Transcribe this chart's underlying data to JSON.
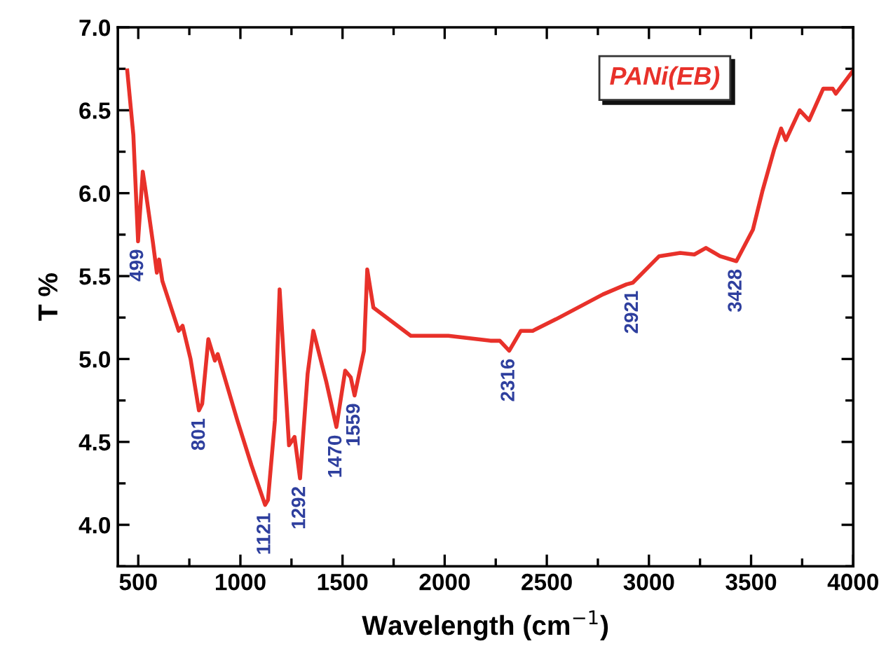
{
  "chart_data": {
    "type": "line",
    "xlabel": "Wavelength (cm$^{−1}$)",
    "ylabel": "T %",
    "xlim": [
      400,
      4000
    ],
    "xticks": [
      500,
      1000,
      1500,
      2000,
      2500,
      3000,
      3500,
      4000
    ],
    "ylim": [
      3.75,
      7.0
    ],
    "yticks": [
      {
        "value": 4,
        "label": "4.0"
      },
      4.5,
      {
        "value": 5,
        "label": "5.0"
      },
      5.5,
      {
        "value": 6,
        "label": "6.0"
      },
      6.5,
      {
        "value": 7,
        "label": "7.0"
      }
    ],
    "grid": false,
    "legend": "top right",
    "marker": "none",
    "line_style": "solid",
    "series": [
      {
        "name": "PANi(EB)",
        "color": "#e8312a",
        "x": [
          446,
          476,
          499,
          522,
          533,
          572,
          591,
          602,
          618,
          698,
          717,
          756,
          797,
          813,
          843,
          875,
          889,
          985,
          1054,
          1121,
          1135,
          1169,
          1192,
          1210,
          1238,
          1265,
          1292,
          1329,
          1357,
          1421,
          1470,
          1513,
          1540,
          1559,
          1605,
          1621,
          1651,
          1834,
          2018,
          2224,
          2270,
          2316,
          2373,
          2431,
          2545,
          2775,
          2890,
          2921,
          3050,
          3153,
          3222,
          3279,
          3348,
          3428,
          3509,
          3555,
          3612,
          3647,
          3670,
          3738,
          3784,
          3853,
          3900,
          3915,
          4000
        ],
        "values": [
          6.74,
          6.35,
          5.71,
          6.13,
          6.04,
          5.7,
          5.52,
          5.6,
          5.47,
          5.17,
          5.2,
          5.0,
          4.69,
          4.73,
          5.12,
          4.99,
          5.03,
          4.63,
          4.36,
          4.12,
          4.15,
          4.63,
          5.42,
          5.05,
          4.48,
          4.53,
          4.28,
          4.91,
          5.17,
          4.86,
          4.59,
          4.93,
          4.89,
          4.78,
          5.05,
          5.54,
          5.31,
          5.14,
          5.14,
          5.11,
          5.11,
          5.05,
          5.17,
          5.17,
          5.24,
          5.39,
          5.45,
          5.46,
          5.62,
          5.64,
          5.63,
          5.67,
          5.62,
          5.59,
          5.78,
          6.01,
          6.26,
          6.39,
          6.32,
          6.5,
          6.44,
          6.63,
          6.63,
          6.6,
          6.74
        ]
      }
    ],
    "annotations": [
      {
        "text": "499",
        "x": 499,
        "y": 5.71
      },
      {
        "text": "801",
        "x": 801,
        "y": 4.69
      },
      {
        "text": "1121",
        "x": 1121,
        "y": 4.12
      },
      {
        "text": "1292",
        "x": 1292,
        "y": 4.28
      },
      {
        "text": "1470",
        "x": 1470,
        "y": 4.59
      },
      {
        "text": "1559",
        "x": 1559,
        "y": 4.78
      },
      {
        "text": "2316",
        "x": 2316,
        "y": 5.05
      },
      {
        "text": "2921",
        "x": 2921,
        "y": 5.46
      },
      {
        "text": "3428",
        "x": 3428,
        "y": 5.59
      }
    ]
  }
}
